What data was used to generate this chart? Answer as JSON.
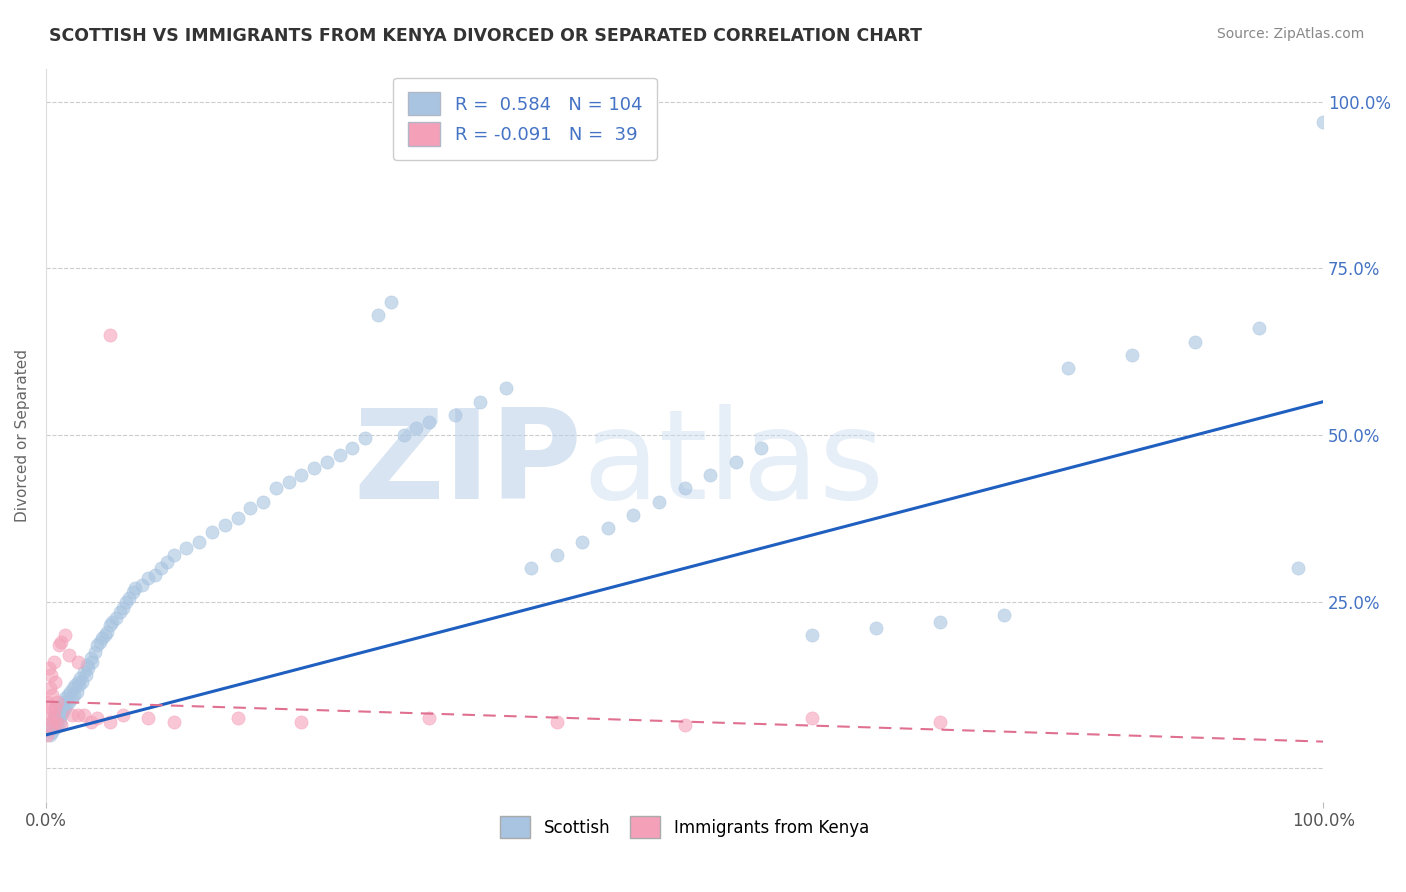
{
  "title": "SCOTTISH VS IMMIGRANTS FROM KENYA DIVORCED OR SEPARATED CORRELATION CHART",
  "source": "Source: ZipAtlas.com",
  "ylabel": "Divorced or Separated",
  "legend_label1": "Scottish",
  "legend_label2": "Immigrants from Kenya",
  "R1": 0.584,
  "N1": 104,
  "R2": -0.091,
  "N2": 39,
  "color_scottish": "#a8c4e0",
  "color_kenya": "#f4a0b8",
  "color_line1": "#1f5fbf",
  "color_line2": "#e07090",
  "line2_dash": true,
  "watermark": "ZIPatlas",
  "watermark_color": "#d0dff0",
  "scottish_x": [
    0.003,
    0.004,
    0.005,
    0.005,
    0.006,
    0.007,
    0.007,
    0.008,
    0.008,
    0.009,
    0.009,
    0.01,
    0.01,
    0.011,
    0.011,
    0.012,
    0.013,
    0.013,
    0.014,
    0.015,
    0.015,
    0.016,
    0.017,
    0.018,
    0.019,
    0.02,
    0.021,
    0.022,
    0.023,
    0.024,
    0.025,
    0.026,
    0.027,
    0.028,
    0.03,
    0.031,
    0.032,
    0.033,
    0.035,
    0.036,
    0.038,
    0.04,
    0.042,
    0.044,
    0.046,
    0.048,
    0.05,
    0.052,
    0.055,
    0.058,
    0.06,
    0.063,
    0.065,
    0.068,
    0.07,
    0.075,
    0.08,
    0.085,
    0.09,
    0.095,
    0.1,
    0.11,
    0.12,
    0.13,
    0.14,
    0.15,
    0.16,
    0.17,
    0.18,
    0.19,
    0.2,
    0.21,
    0.22,
    0.23,
    0.24,
    0.25,
    0.26,
    0.27,
    0.28,
    0.29,
    0.3,
    0.32,
    0.34,
    0.36,
    0.38,
    0.4,
    0.42,
    0.44,
    0.46,
    0.48,
    0.5,
    0.52,
    0.54,
    0.56,
    0.6,
    0.65,
    0.7,
    0.75,
    0.8,
    0.85,
    0.9,
    0.95,
    0.98,
    1.0
  ],
  "scottish_y": [
    0.05,
    0.06,
    0.07,
    0.055,
    0.065,
    0.06,
    0.08,
    0.07,
    0.09,
    0.065,
    0.08,
    0.085,
    0.075,
    0.07,
    0.09,
    0.08,
    0.095,
    0.085,
    0.1,
    0.09,
    0.105,
    0.095,
    0.11,
    0.1,
    0.115,
    0.105,
    0.12,
    0.11,
    0.125,
    0.115,
    0.13,
    0.125,
    0.135,
    0.13,
    0.145,
    0.14,
    0.155,
    0.15,
    0.165,
    0.16,
    0.175,
    0.185,
    0.19,
    0.195,
    0.2,
    0.205,
    0.215,
    0.22,
    0.225,
    0.235,
    0.24,
    0.25,
    0.255,
    0.265,
    0.27,
    0.275,
    0.285,
    0.29,
    0.3,
    0.31,
    0.32,
    0.33,
    0.34,
    0.355,
    0.365,
    0.375,
    0.39,
    0.4,
    0.42,
    0.43,
    0.44,
    0.45,
    0.46,
    0.47,
    0.48,
    0.495,
    0.68,
    0.7,
    0.5,
    0.51,
    0.52,
    0.53,
    0.55,
    0.57,
    0.3,
    0.32,
    0.34,
    0.36,
    0.38,
    0.4,
    0.42,
    0.44,
    0.46,
    0.48,
    0.2,
    0.21,
    0.22,
    0.23,
    0.6,
    0.62,
    0.64,
    0.66,
    0.3,
    0.97
  ],
  "kenya_x": [
    0.001,
    0.001,
    0.002,
    0.002,
    0.003,
    0.003,
    0.004,
    0.004,
    0.005,
    0.005,
    0.006,
    0.006,
    0.007,
    0.007,
    0.008,
    0.009,
    0.01,
    0.012,
    0.015,
    0.018,
    0.02,
    0.025,
    0.03,
    0.035,
    0.04,
    0.05,
    0.06,
    0.08,
    0.1,
    0.15,
    0.2,
    0.3,
    0.4,
    0.5,
    0.6,
    0.7,
    0.05,
    0.025,
    0.012
  ],
  "kenya_y": [
    0.05,
    0.1,
    0.08,
    0.15,
    0.06,
    0.12,
    0.09,
    0.14,
    0.07,
    0.11,
    0.08,
    0.16,
    0.09,
    0.13,
    0.07,
    0.1,
    0.185,
    0.19,
    0.2,
    0.17,
    0.08,
    0.16,
    0.08,
    0.07,
    0.075,
    0.07,
    0.08,
    0.075,
    0.07,
    0.075,
    0.07,
    0.075,
    0.07,
    0.065,
    0.075,
    0.07,
    0.65,
    0.08,
    0.065
  ],
  "blue_line_x0": 0.0,
  "blue_line_y0": 0.05,
  "blue_line_x1": 1.0,
  "blue_line_y1": 0.55,
  "pink_line_x0": 0.0,
  "pink_line_y0": 0.1,
  "pink_line_x1": 1.0,
  "pink_line_y1": 0.04,
  "xlim": [
    0.0,
    1.0
  ],
  "ylim": [
    -0.05,
    1.05
  ],
  "yticks": [
    0.0,
    0.25,
    0.5,
    0.75,
    1.0
  ],
  "ytick_labels_right": [
    "",
    "25.0%",
    "50.0%",
    "75.0%",
    "100.0%"
  ],
  "xtick_labels": [
    "0.0%",
    "100.0%"
  ],
  "background_color": "#ffffff",
  "grid_color": "#cccccc",
  "title_color": "#333333",
  "source_color": "#888888",
  "axis_label_color": "#666666",
  "tick_label_color": "#4472C4",
  "legend_text_color": "#4472C4",
  "legend_r_color": "#333333"
}
